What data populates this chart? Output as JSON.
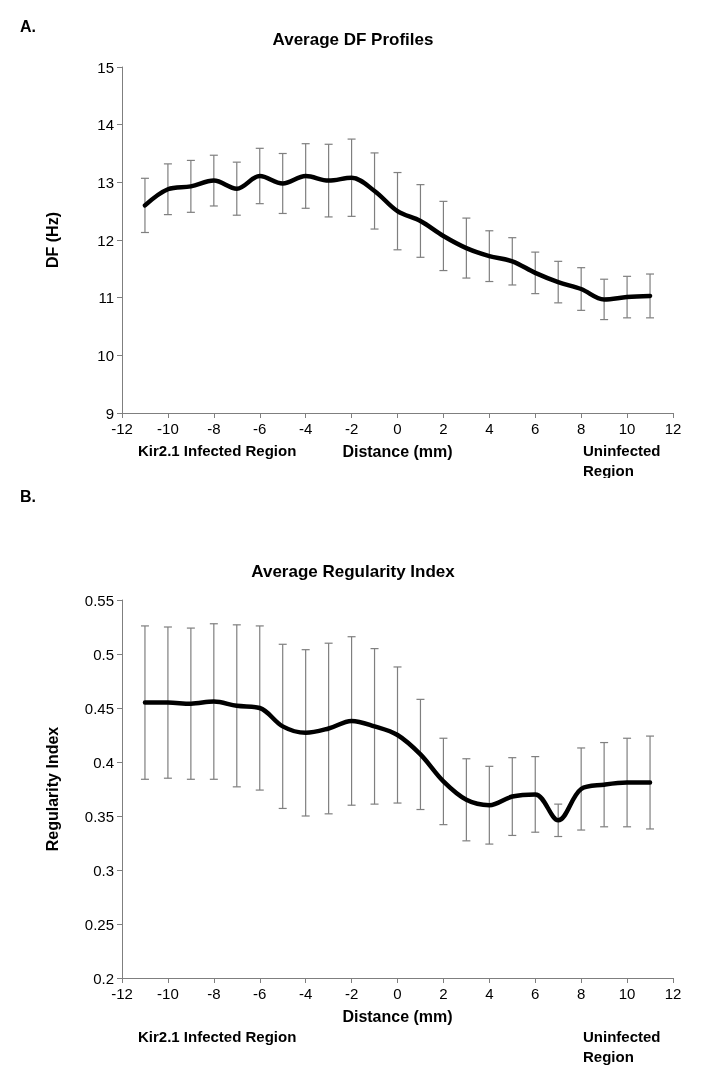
{
  "chart_data": [
    {
      "type": "line",
      "title": "Average DF Profiles",
      "xlabel": "Distance (mm)",
      "ylabel": "DF (Hz)",
      "annotations": [
        "A.",
        "Kir2.1 Infected Region",
        "Uninfected Region"
      ],
      "x": [
        -11,
        -10,
        -9,
        -8,
        -7,
        -6,
        -5,
        -4,
        -3,
        -2,
        -1,
        0,
        1,
        2,
        3,
        4,
        5,
        6,
        7,
        8,
        9,
        10,
        11
      ],
      "series": [
        {
          "color": "#000000",
          "values": [
            12.6,
            12.88,
            12.93,
            13.03,
            12.89,
            13.11,
            12.98,
            13.11,
            13.03,
            13.08,
            12.85,
            12.5,
            12.33,
            12.07,
            11.86,
            11.72,
            11.63,
            11.43,
            11.27,
            11.15,
            10.97,
            11.01,
            11.03
          ],
          "errors": [
            0.47,
            0.44,
            0.45,
            0.44,
            0.46,
            0.48,
            0.52,
            0.56,
            0.63,
            0.67,
            0.66,
            0.67,
            0.63,
            0.6,
            0.52,
            0.44,
            0.41,
            0.36,
            0.36,
            0.37,
            0.35,
            0.36,
            0.38
          ]
        }
      ],
      "xlim": [
        -12,
        12
      ],
      "xticks": [
        -12,
        -10,
        -8,
        -6,
        -4,
        -2,
        0,
        2,
        4,
        6,
        8,
        10,
        12
      ],
      "ylim": [
        9,
        15
      ],
      "yticks": [
        9,
        10,
        11,
        12,
        13,
        14,
        15
      ],
      "grid": false,
      "marker": "none",
      "line_style": "solid"
    },
    {
      "type": "line",
      "title": "Average Regularity Index",
      "xlabel": "Distance (mm)",
      "ylabel": "Regularity Index",
      "annotations": [
        "B.",
        "Kir2.1 Infected Region",
        "Uninfected Region"
      ],
      "x": [
        -11,
        -10,
        -9,
        -8,
        -7,
        -6,
        -5,
        -4,
        -3,
        -2,
        -1,
        0,
        1,
        2,
        3,
        4,
        5,
        6,
        7,
        8,
        9,
        10,
        11
      ],
      "series": [
        {
          "color": "#000000",
          "values": [
            0.455,
            0.455,
            0.454,
            0.456,
            0.452,
            0.45,
            0.433,
            0.427,
            0.431,
            0.438,
            0.433,
            0.425,
            0.407,
            0.382,
            0.365,
            0.36,
            0.368,
            0.37,
            0.346,
            0.375,
            0.379,
            0.381,
            0.381
          ],
          "errors": [
            0.071,
            0.07,
            0.07,
            0.072,
            0.075,
            0.076,
            0.076,
            0.077,
            0.079,
            0.078,
            0.072,
            0.063,
            0.051,
            0.04,
            0.038,
            0.036,
            0.036,
            0.035,
            0.015,
            0.038,
            0.039,
            0.041,
            0.043
          ]
        }
      ],
      "xlim": [
        -12,
        12
      ],
      "xticks": [
        -12,
        -10,
        -8,
        -6,
        -4,
        -2,
        0,
        2,
        4,
        6,
        8,
        10,
        12
      ],
      "ylim": [
        0.2,
        0.55
      ],
      "yticks": [
        0.2,
        0.25,
        0.3,
        0.35,
        0.4,
        0.45,
        0.5,
        0.55
      ],
      "grid": false,
      "marker": "none",
      "line_style": "solid"
    }
  ]
}
